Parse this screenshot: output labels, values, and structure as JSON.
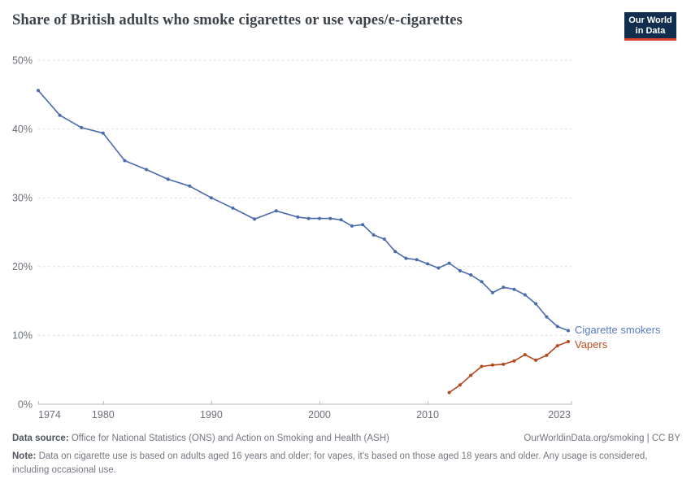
{
  "header": {
    "logo": {
      "line1": "Our World",
      "line2": "in Data"
    }
  },
  "chart_data": {
    "type": "line",
    "title": "Share of British adults who smoke cigarettes or use vapes/e-cigarettes",
    "grid": "horizontal-dashed",
    "legend_position": "end-of-line labels",
    "xlim": [
      1974,
      2023.3
    ],
    "ylim": [
      0,
      50
    ],
    "y_axis": {
      "ticks": [
        0,
        10,
        20,
        30,
        40,
        50
      ],
      "labels": [
        "0%",
        "10%",
        "20%",
        "30%",
        "40%",
        "50%"
      ]
    },
    "x_ticks": {
      "years": [
        1974,
        1980,
        1990,
        2000,
        2010,
        2023
      ],
      "labels": [
        "1974",
        "1980",
        "1990",
        "2000",
        "2010",
        "2023"
      ]
    },
    "series": [
      {
        "name": "Cigarette smokers",
        "color": "#4a6aae",
        "label_color": "#577bc4",
        "years": [
          1974,
          1976,
          1978,
          1980,
          1982,
          1984,
          1986,
          1988,
          1990,
          1992,
          1994,
          1996,
          1998,
          1999,
          2000,
          2001,
          2002,
          2003,
          2004,
          2005,
          2006,
          2007,
          2008,
          2009,
          2010,
          2011,
          2012,
          2013,
          2014,
          2015,
          2016,
          2017,
          2018,
          2019,
          2020,
          2021,
          2022,
          2023
        ],
        "values": [
          45.6,
          42.0,
          40.2,
          39.4,
          35.4,
          34.1,
          32.7,
          31.7,
          30.0,
          28.5,
          26.9,
          28.1,
          27.2,
          27.0,
          27.0,
          27.0,
          26.8,
          25.9,
          26.1,
          24.6,
          24.0,
          22.2,
          21.2,
          21.0,
          20.4,
          19.8,
          20.5,
          19.4,
          18.8,
          17.8,
          16.2,
          17.0,
          16.7,
          15.9,
          14.6,
          12.7,
          11.3,
          10.7
        ]
      },
      {
        "name": "Vapers",
        "color": "#b5481d",
        "label_color": "#bf4b1f",
        "years": [
          2012,
          2013,
          2014,
          2015,
          2016,
          2017,
          2018,
          2019,
          2020,
          2021,
          2022,
          2023
        ],
        "values": [
          1.7,
          2.8,
          4.2,
          5.5,
          5.7,
          5.8,
          6.3,
          7.2,
          6.4,
          7.1,
          8.5,
          9.1
        ]
      }
    ]
  },
  "footer": {
    "datasource_label": "Data source:",
    "datasource_text": " Office for National Statistics (ONS) and Action on Smoking and Health (ASH)",
    "attribution": "OurWorldinData.org/smoking | CC BY",
    "note_label": "Note:",
    "note_text": " Data on cigarette use is based on adults aged 16 years and older; for vapes, it's based on those aged 18 years and older. Any usage is considered, including occasional use."
  }
}
